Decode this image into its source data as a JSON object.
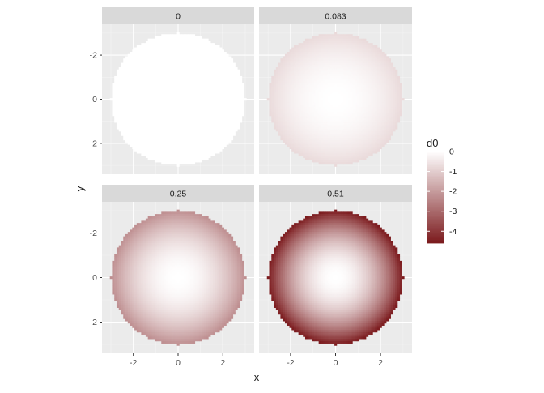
{
  "chart_data": {
    "type": "heatmap",
    "facet_by": "",
    "panels": [
      {
        "label": "0",
        "value": 0
      },
      {
        "label": "0.083",
        "value": 0.083
      },
      {
        "label": "0.25",
        "value": 0.25
      },
      {
        "label": "0.51",
        "value": 0.51
      }
    ],
    "xlabel": "x",
    "ylabel": "y",
    "xlim": [
      -3.4,
      3.4
    ],
    "ylim": [
      -3.4,
      3.4
    ],
    "y_reversed": true,
    "x_ticks": [
      -2,
      0,
      2
    ],
    "x_tick_labels": [
      "-2",
      "0",
      "2"
    ],
    "y_ticks": [
      -2,
      0,
      2
    ],
    "y_tick_labels": [
      "-2",
      "0",
      "2"
    ],
    "disk_radius": 3,
    "grid_resolution": 0.1,
    "fill_formula": "d0 = -panel_value * (x^2 + y^2)",
    "legend": {
      "title": "d0",
      "placement": "right",
      "range": [
        -4.6,
        0
      ],
      "ticks": [
        0,
        -1,
        -2,
        -3,
        -4
      ],
      "tick_labels": [
        "0",
        "-1",
        "-2",
        "-3",
        "-4"
      ],
      "color_low": "#7b1a1d",
      "color_high": "#ffffff"
    },
    "grid": true,
    "panel_background": "#ebebeb",
    "strip_background": "#d9d9d9"
  }
}
